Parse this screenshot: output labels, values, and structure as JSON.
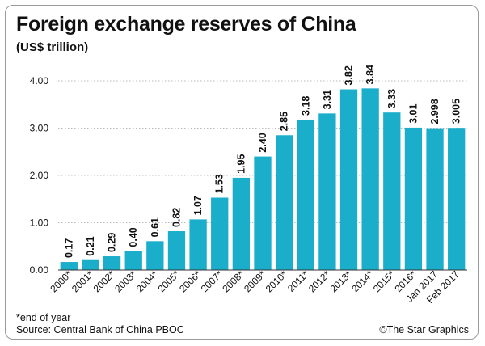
{
  "header": {
    "title": "Foreign exchange reserves of China",
    "subtitle": "(US$ trillion)"
  },
  "footer": {
    "note": "*end of year",
    "source": "Source: Central Bank of China PBOC",
    "credit": "©The Star Graphics"
  },
  "colors": {
    "bar": "#1aaecb",
    "grid": "#b8b8b8",
    "axis": "#333333"
  },
  "chart_data": {
    "type": "bar",
    "title": "Foreign exchange reserves of China",
    "ylabel": "(US$ trillion)",
    "xlabel": "",
    "ylim": [
      0,
      4
    ],
    "yticks": [
      "0.00",
      "1.00",
      "2.00",
      "3.00",
      "4.00"
    ],
    "grid": true,
    "categories": [
      "2000*",
      "2001*",
      "2002*",
      "2003*",
      "2004*",
      "2005*",
      "2006*",
      "2007*",
      "2008*",
      "2009*",
      "2010*",
      "2011*",
      "2012*",
      "2013*",
      "2014*",
      "2015*",
      "2016*",
      "Jan 2017",
      "Feb 2017"
    ],
    "values": [
      0.17,
      0.21,
      0.29,
      0.4,
      0.61,
      0.82,
      1.07,
      1.53,
      1.95,
      2.4,
      2.85,
      3.18,
      3.31,
      3.82,
      3.84,
      3.33,
      3.01,
      2.998,
      3.005
    ],
    "labels": [
      "0.17",
      "0.21",
      "0.29",
      "0.40",
      "0.61",
      "0.82",
      "1.07",
      "1.53",
      "1.95",
      "2.40",
      "2.85",
      "3.18",
      "3.31",
      "3.82",
      "3.84",
      "3.33",
      "3.01",
      "2.998",
      "3.005"
    ]
  }
}
